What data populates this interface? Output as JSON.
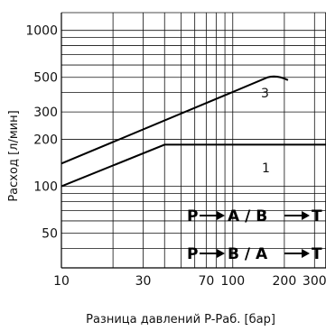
{
  "chart_data": {
    "type": "line",
    "title": "",
    "xlabel": "Разница давлений P-Раб. [бар]",
    "ylabel": "Расход [л/мин]",
    "xscale": "log",
    "yscale": "log",
    "xlim": [
      10,
      350
    ],
    "ylim": [
      30,
      1300
    ],
    "grid": true,
    "x_ticks": [
      {
        "v": 10,
        "label": "10"
      },
      {
        "v": 30,
        "label": "30"
      },
      {
        "v": 70,
        "label": "70"
      },
      {
        "v": 100,
        "label": "100"
      },
      {
        "v": 200,
        "label": "200"
      },
      {
        "v": 300,
        "label": "300"
      }
    ],
    "y_ticks": [
      {
        "v": 50,
        "label": "50"
      },
      {
        "v": 100,
        "label": "100"
      },
      {
        "v": 200,
        "label": "200"
      },
      {
        "v": 300,
        "label": "300"
      },
      {
        "v": 500,
        "label": "500"
      },
      {
        "v": 1000,
        "label": "1000"
      }
    ],
    "series": [
      {
        "name": "1",
        "x": [
          10,
          40,
          350
        ],
        "y": [
          100,
          185,
          185
        ]
      },
      {
        "name": "3",
        "x": [
          10,
          160,
          180,
          210
        ],
        "y": [
          140,
          500,
          500,
          480
        ]
      }
    ],
    "annotations": [
      {
        "text": "P",
        "arrow": true,
        "text2": "A / B",
        "arrow2": true,
        "text3": "T"
      },
      {
        "text": "P",
        "arrow": true,
        "text2": "B / A",
        "arrow2": true,
        "text3": "T"
      }
    ]
  }
}
